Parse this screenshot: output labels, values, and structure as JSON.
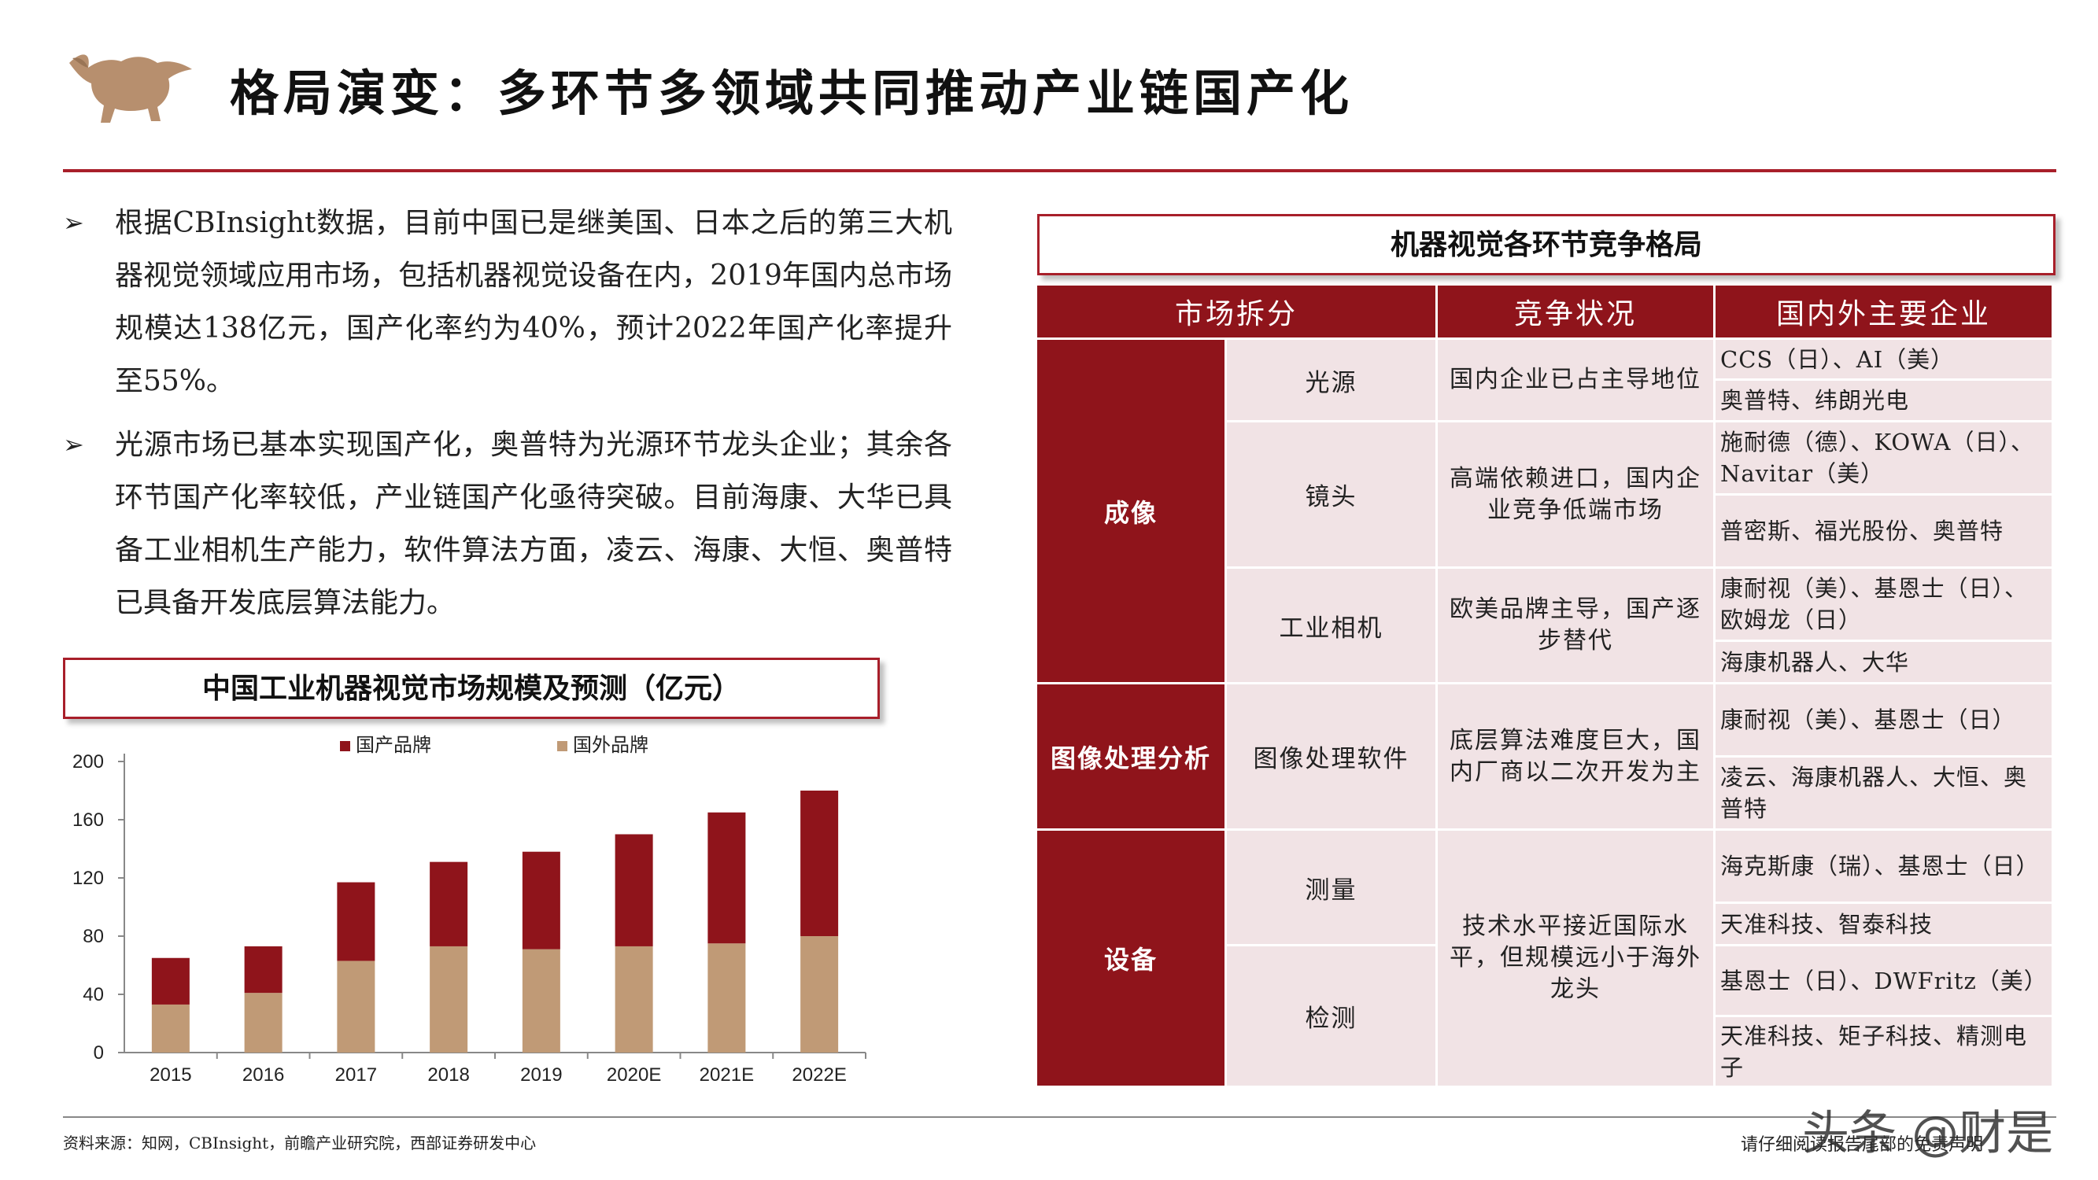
{
  "header": {
    "title": "格局演变：多环节多领域共同推动产业链国产化",
    "logo_icon": "bull-icon"
  },
  "bullets": [
    {
      "mark": "➢",
      "text": "根据CBInsight数据，目前中国已是继美国、日本之后的第三大机器视觉领域应用市场，包括机器视觉设备在内，2019年国内总市场规模达138亿元，国产化率约为40%，预计2022年国产化率提升至55%。"
    },
    {
      "mark": "➢",
      "text": "光源市场已基本实现国产化，奥普特为光源环节龙头企业；其余各环节国产化率较低，产业链国产化亟待突破。目前海康、大华已具备工业相机生产能力，软件算法方面，凌云、海康、大恒、奥普特已具备开发底层算法能力。"
    }
  ],
  "chart_title": "中国工业机器视觉市场规模及预测（亿元）",
  "chart_data": {
    "type": "bar",
    "stacked": true,
    "categories": [
      "2015",
      "2016",
      "2017",
      "2018",
      "2019",
      "2020E",
      "2021E",
      "2022E"
    ],
    "series": [
      {
        "name": "国外品牌",
        "color": "#c09a76",
        "values": [
          33,
          41,
          63,
          73,
          71,
          73,
          75,
          80
        ]
      },
      {
        "name": "国产品牌",
        "color": "#8f141b",
        "values": [
          32,
          32,
          54,
          58,
          67,
          77,
          90,
          100
        ]
      }
    ],
    "ylim": [
      0,
      200
    ],
    "yticks": [
      0,
      40,
      80,
      120,
      160,
      200
    ],
    "legend": "top",
    "grid": false
  },
  "table": {
    "title": "机器视觉各环节竞争格局",
    "headers": [
      "市场拆分",
      "竞争状况",
      "国内外主要企业"
    ],
    "groups": [
      "成像",
      "图像处理分析",
      "设备"
    ],
    "subs": [
      "光源",
      "镜头",
      "工业相机",
      "图像处理软件",
      "测量",
      "检测"
    ],
    "competition": [
      "国内企业已占主导地位",
      "高端依赖进口，国内企业竞争低端市场",
      "欧美品牌主导，国产逐步替代",
      "底层算法难度巨大，国内厂商以二次开发为主",
      "技术水平接近国际水平，但规模远小于海外龙头"
    ],
    "companies": [
      "CCS（日）、AI（美）",
      "奥普特、纬朗光电",
      "施耐德（德）、KOWA（日）、Navitar（美）",
      "普密斯、福光股份、奥普特",
      "康耐视（美）、基恩士（日）、欧姆龙（日）",
      "海康机器人、大华",
      "康耐视（美）、基恩士（日）",
      "凌云、海康机器人、大恒、奥普特",
      "海克斯康（瑞）、基恩士（日）",
      "天准科技、智泰科技",
      "基恩士（日）、DWFritz（美）",
      "天准科技、矩子科技、精测电子"
    ]
  },
  "footer": {
    "source": "资料来源：知网，CBInsight，前瞻产业研究院，西部证券研发中心",
    "disclaimer": "请仔细阅读报告尾部的免责声明",
    "watermark": "头条 @财是"
  }
}
